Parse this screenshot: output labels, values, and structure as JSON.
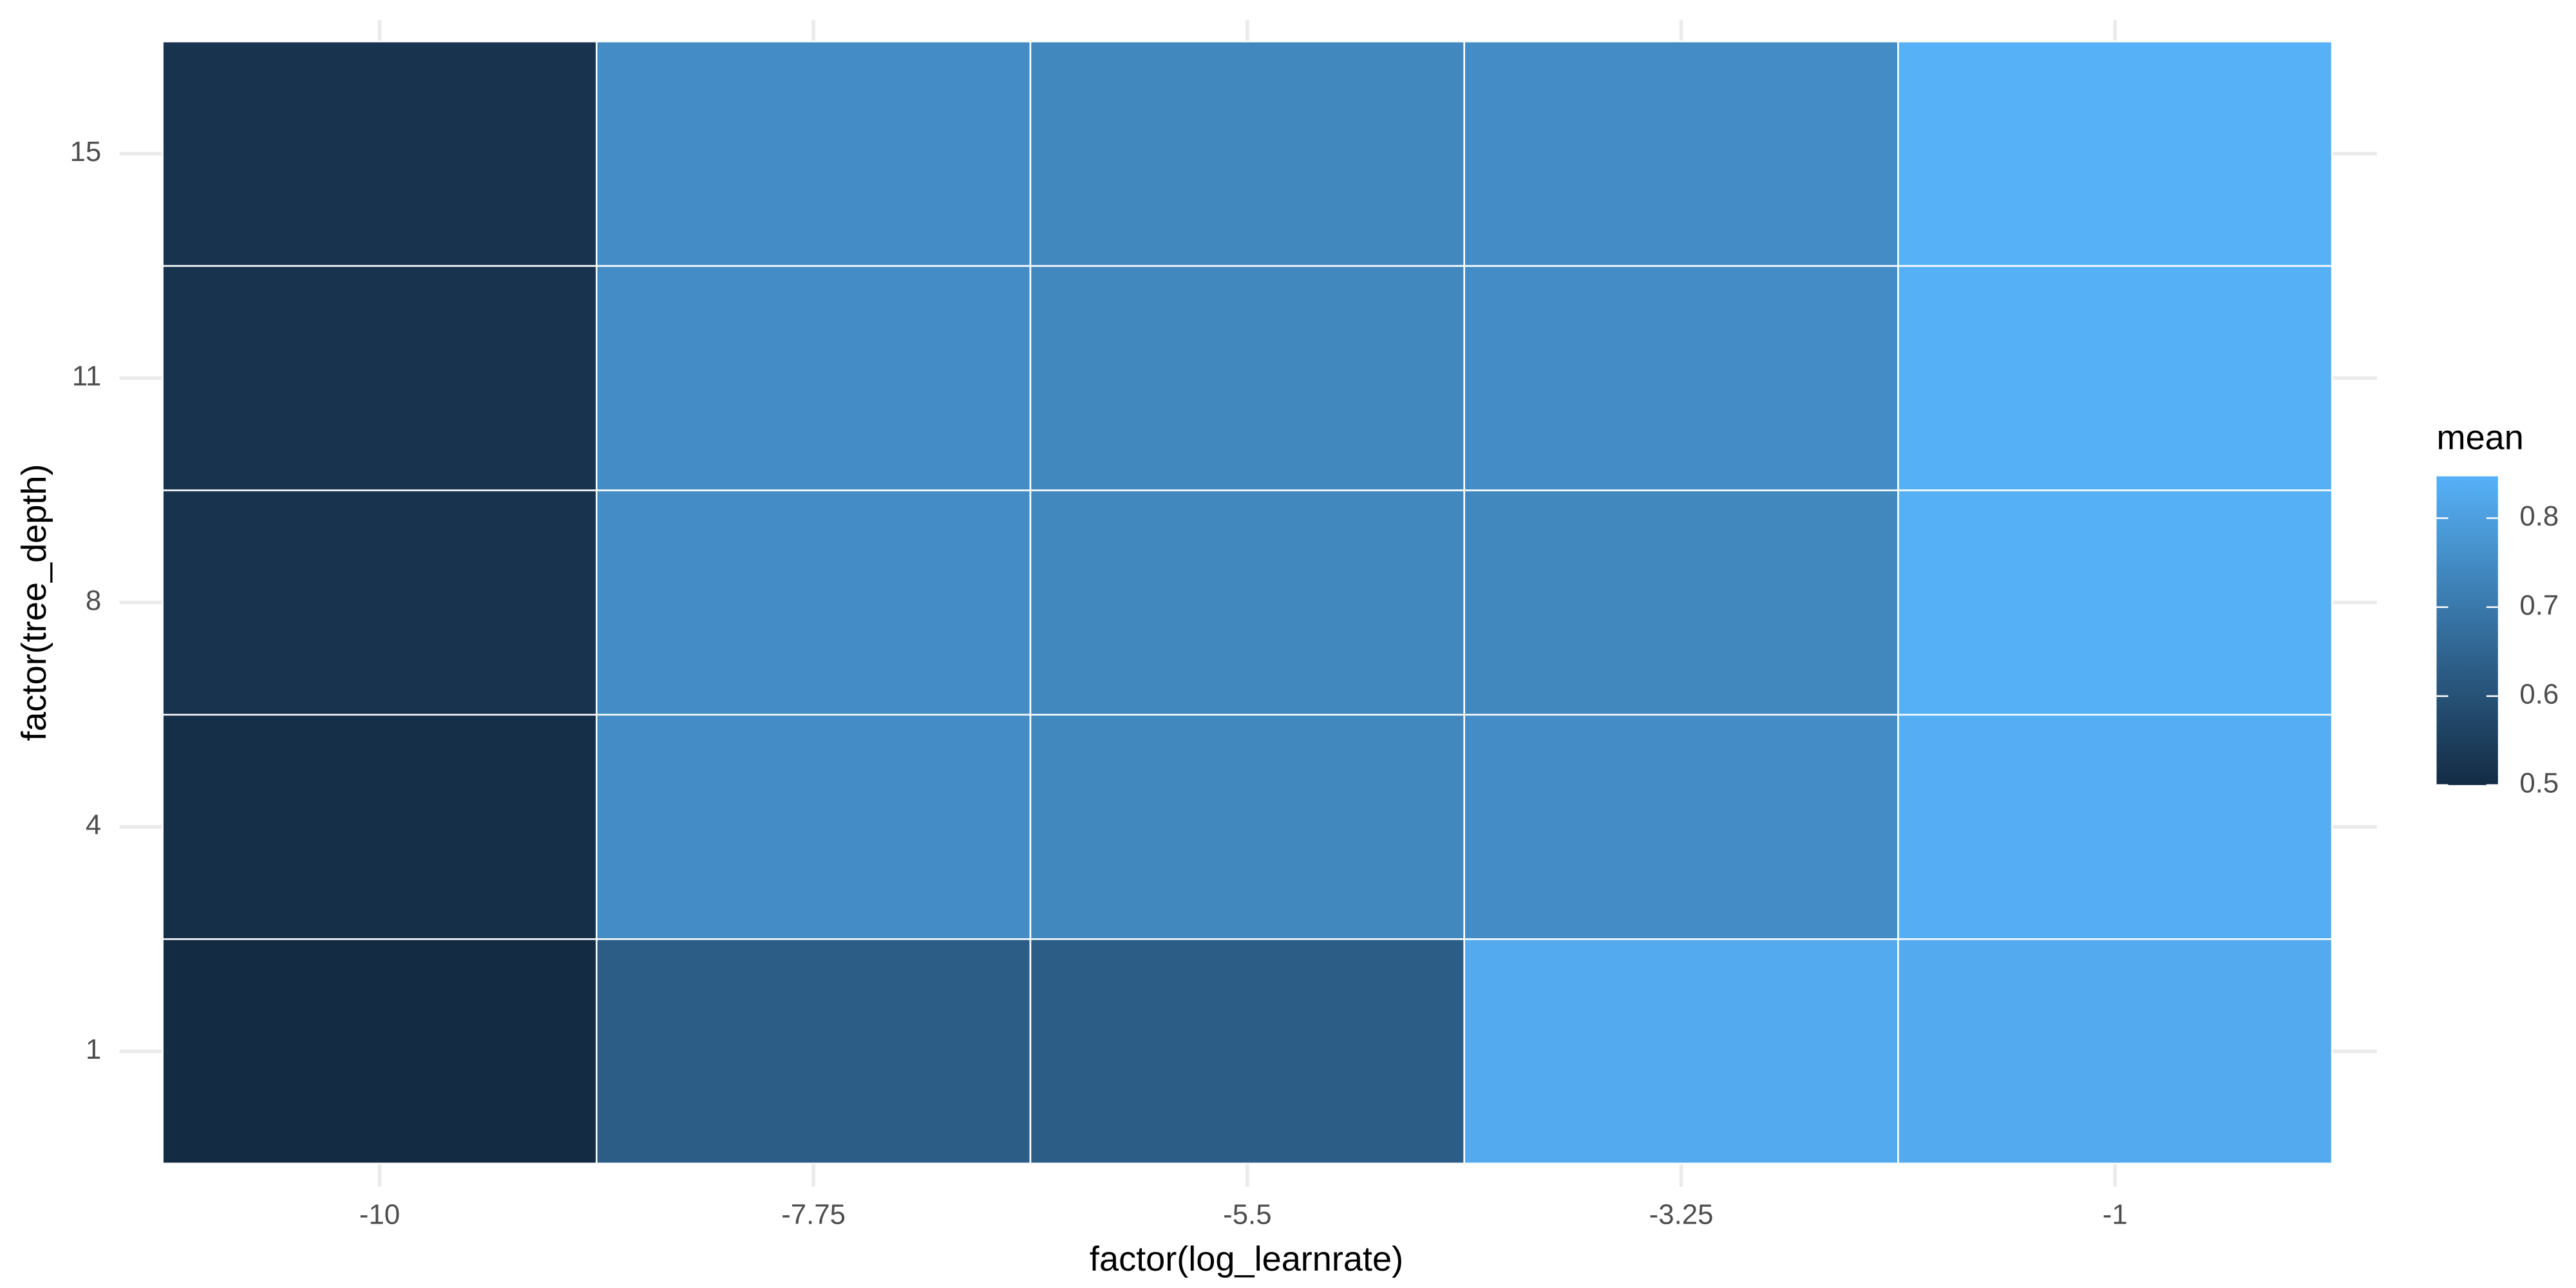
{
  "chart_data": {
    "type": "heatmap",
    "x_label": "factor(log_learnrate)",
    "y_label": "factor(tree_depth)",
    "x_categories": [
      "-10",
      "-7.75",
      "-5.5",
      "-3.25",
      "-1"
    ],
    "y_categories": [
      "1",
      "4",
      "8",
      "11",
      "15"
    ],
    "values": [
      [
        0.5,
        0.63,
        0.63,
        0.83,
        0.83
      ],
      [
        0.51,
        0.75,
        0.74,
        0.75,
        0.84
      ],
      [
        0.52,
        0.75,
        0.74,
        0.74,
        0.845
      ],
      [
        0.52,
        0.75,
        0.74,
        0.75,
        0.845
      ],
      [
        0.52,
        0.75,
        0.74,
        0.75,
        0.847
      ]
    ],
    "legend_title": "mean",
    "colorlim": [
      0.5,
      0.847
    ],
    "colorticks": [
      0.5,
      0.6,
      0.7,
      0.8
    ],
    "color_low": "#132B43",
    "color_high": "#56B1F7",
    "grid": true
  }
}
